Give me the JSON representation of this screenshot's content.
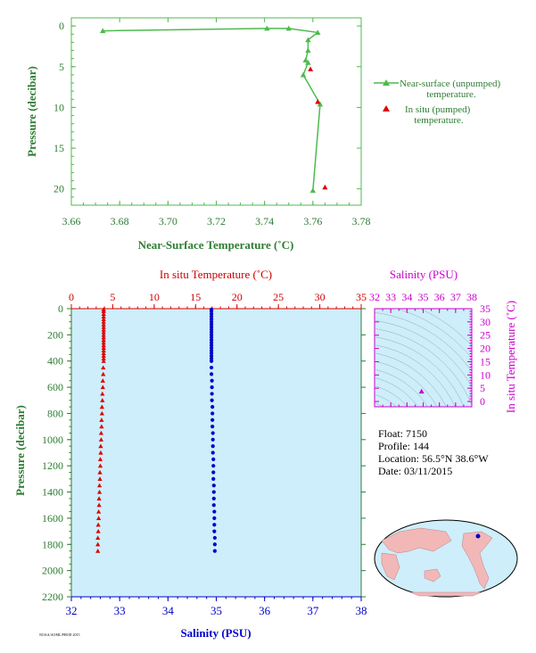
{
  "info": {
    "float_line": "Float:  7150",
    "profile_line": "Profile:  144",
    "location_line": "Location:  56.5°N  38.6°W",
    "date_line": "Date:  03/11/2015"
  },
  "footer_code": "NOAA/AOML/PHOD 2015",
  "colors": {
    "green": "#4cbb4c",
    "red": "#dd0000",
    "blue": "#0000cc",
    "magenta": "#cc00cc",
    "panel_bg": "#cdeefa"
  },
  "chart_data": [
    {
      "type": "line",
      "xlabel": "Near-Surface Temperature (˚C)",
      "ylabel": "Pressure (decibar)",
      "xlim": [
        3.66,
        3.78
      ],
      "ylim": [
        22,
        -1
      ],
      "xticks": [
        "3.66",
        "3.68",
        "3.70",
        "3.72",
        "3.74",
        "3.76",
        "3.78"
      ],
      "yticks": [
        "0",
        "5",
        "10",
        "15",
        "20"
      ],
      "legend_position": "right",
      "series": [
        {
          "name": "Near-surface (unpumped) temperature.",
          "marker": "triangle-line",
          "points": [
            [
              3.673,
              0.6
            ],
            [
              3.741,
              0.3
            ],
            [
              3.75,
              0.3
            ],
            [
              3.762,
              0.8
            ],
            [
              3.758,
              1.7
            ],
            [
              3.758,
              3.0
            ],
            [
              3.757,
              4.2
            ],
            [
              3.758,
              4.5
            ],
            [
              3.756,
              6.0
            ],
            [
              3.763,
              9.6
            ],
            [
              3.76,
              20.2
            ]
          ]
        },
        {
          "name": "In situ (pumped) temperature.",
          "marker": "triangle",
          "points": [
            [
              3.759,
              5.3
            ],
            [
              3.762,
              9.3
            ],
            [
              3.765,
              19.8
            ]
          ]
        }
      ]
    },
    {
      "type": "scatter",
      "ylabel": "Pressure (decibar)",
      "top_axis_label": "In situ Temperature (˚C)",
      "bottom_axis_label": "Salinity (PSU)",
      "temperature_axis": [
        0,
        35
      ],
      "temperature_ticks": [
        "0",
        "5",
        "10",
        "15",
        "20",
        "25",
        "30",
        "35"
      ],
      "salinity_axis": [
        32,
        38
      ],
      "salinity_ticks": [
        "32",
        "33",
        "34",
        "35",
        "36",
        "37",
        "38"
      ],
      "pressure_axis": [
        0,
        2200
      ],
      "pressure_ticks": [
        "0",
        "200",
        "400",
        "600",
        "800",
        "1000",
        "1200",
        "1400",
        "1600",
        "1800",
        "2000",
        "2200"
      ],
      "temperature_series": {
        "name": "In situ Temperature",
        "points": [
          [
            3.9,
            6
          ],
          [
            3.9,
            20
          ],
          [
            3.9,
            40
          ],
          [
            3.9,
            60
          ],
          [
            3.9,
            80
          ],
          [
            3.9,
            100
          ],
          [
            3.9,
            120
          ],
          [
            3.9,
            140
          ],
          [
            3.9,
            160
          ],
          [
            3.9,
            180
          ],
          [
            3.9,
            200
          ],
          [
            3.9,
            220
          ],
          [
            3.9,
            240
          ],
          [
            3.9,
            260
          ],
          [
            3.9,
            280
          ],
          [
            3.9,
            300
          ],
          [
            3.9,
            320
          ],
          [
            3.9,
            340
          ],
          [
            3.9,
            360
          ],
          [
            3.9,
            380
          ],
          [
            3.9,
            400
          ],
          [
            3.85,
            450
          ],
          [
            3.85,
            500
          ],
          [
            3.8,
            550
          ],
          [
            3.8,
            600
          ],
          [
            3.75,
            650
          ],
          [
            3.75,
            700
          ],
          [
            3.7,
            750
          ],
          [
            3.7,
            800
          ],
          [
            3.65,
            850
          ],
          [
            3.65,
            900
          ],
          [
            3.6,
            950
          ],
          [
            3.6,
            1000
          ],
          [
            3.55,
            1050
          ],
          [
            3.55,
            1100
          ],
          [
            3.5,
            1150
          ],
          [
            3.5,
            1200
          ],
          [
            3.45,
            1250
          ],
          [
            3.45,
            1300
          ],
          [
            3.4,
            1350
          ],
          [
            3.4,
            1400
          ],
          [
            3.35,
            1450
          ],
          [
            3.35,
            1500
          ],
          [
            3.3,
            1550
          ],
          [
            3.3,
            1600
          ],
          [
            3.25,
            1650
          ],
          [
            3.25,
            1700
          ],
          [
            3.2,
            1750
          ],
          [
            3.2,
            1800
          ],
          [
            3.2,
            1850
          ]
        ]
      },
      "salinity_series": {
        "name": "Salinity",
        "points": [
          [
            34.9,
            6
          ],
          [
            34.9,
            20
          ],
          [
            34.9,
            40
          ],
          [
            34.9,
            60
          ],
          [
            34.9,
            80
          ],
          [
            34.9,
            100
          ],
          [
            34.9,
            120
          ],
          [
            34.9,
            140
          ],
          [
            34.9,
            160
          ],
          [
            34.9,
            180
          ],
          [
            34.9,
            200
          ],
          [
            34.9,
            220
          ],
          [
            34.9,
            240
          ],
          [
            34.9,
            260
          ],
          [
            34.9,
            280
          ],
          [
            34.9,
            300
          ],
          [
            34.9,
            320
          ],
          [
            34.9,
            340
          ],
          [
            34.9,
            360
          ],
          [
            34.9,
            380
          ],
          [
            34.9,
            400
          ],
          [
            34.9,
            450
          ],
          [
            34.9,
            500
          ],
          [
            34.91,
            550
          ],
          [
            34.91,
            600
          ],
          [
            34.91,
            650
          ],
          [
            34.91,
            700
          ],
          [
            34.92,
            750
          ],
          [
            34.92,
            800
          ],
          [
            34.92,
            850
          ],
          [
            34.92,
            900
          ],
          [
            34.93,
            950
          ],
          [
            34.93,
            1000
          ],
          [
            34.93,
            1050
          ],
          [
            34.93,
            1100
          ],
          [
            34.94,
            1150
          ],
          [
            34.94,
            1200
          ],
          [
            34.94,
            1250
          ],
          [
            34.94,
            1300
          ],
          [
            34.95,
            1350
          ],
          [
            34.95,
            1400
          ],
          [
            34.95,
            1450
          ],
          [
            34.95,
            1500
          ],
          [
            34.96,
            1550
          ],
          [
            34.96,
            1600
          ],
          [
            34.96,
            1650
          ],
          [
            34.96,
            1700
          ],
          [
            34.97,
            1750
          ],
          [
            34.97,
            1800
          ],
          [
            34.97,
            1850
          ]
        ]
      }
    },
    {
      "type": "scatter",
      "xlabel": "Salinity (PSU)",
      "ylabel": "In situ Temperature (˚C)",
      "xlim": [
        32,
        38
      ],
      "ylim": [
        -2,
        35
      ],
      "xticks": [
        "32",
        "33",
        "34",
        "35",
        "36",
        "37",
        "38"
      ],
      "yticks": [
        "0",
        "5",
        "10",
        "15",
        "20",
        "25",
        "30",
        "35"
      ],
      "points": [
        [
          34.9,
          3.8
        ]
      ]
    }
  ]
}
